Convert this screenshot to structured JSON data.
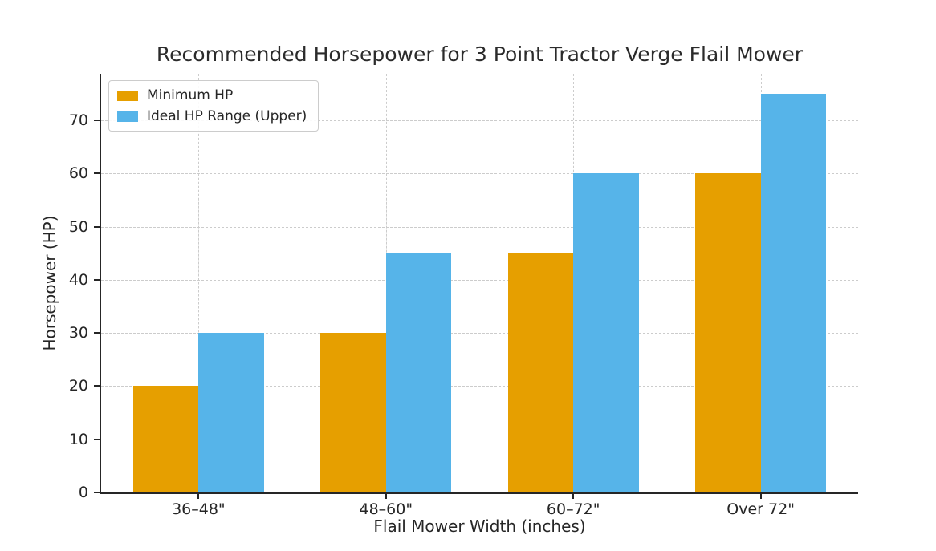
{
  "figure": {
    "background": "#ffffff",
    "text_color": "#262626",
    "spine_color": "#262626"
  },
  "chart_data": {
    "type": "bar",
    "title": "Recommended Horsepower for 3 Point Tractor Verge Flail Mower",
    "xlabel": "Flail Mower Width (inches)",
    "ylabel": "Horsepower (HP)",
    "categories": [
      "36–48\"",
      "48–60\"",
      "60–72\"",
      "Over 72\""
    ],
    "series": [
      {
        "name": "Minimum HP",
        "color": "#E69F00",
        "values": [
          20,
          30,
          45,
          60
        ]
      },
      {
        "name": "Ideal HP Range (Upper)",
        "color": "#56B4E9",
        "values": [
          30,
          45,
          60,
          75
        ]
      }
    ],
    "yticks": [
      0,
      10,
      20,
      30,
      40,
      50,
      60,
      70
    ],
    "ylim": [
      0,
      78.75
    ],
    "bar_width_data_units": 0.35,
    "grid": {
      "horizontal": true,
      "vertical": true,
      "style": "dashed",
      "color": "#cccccc"
    },
    "legend_position": "upper-left"
  }
}
